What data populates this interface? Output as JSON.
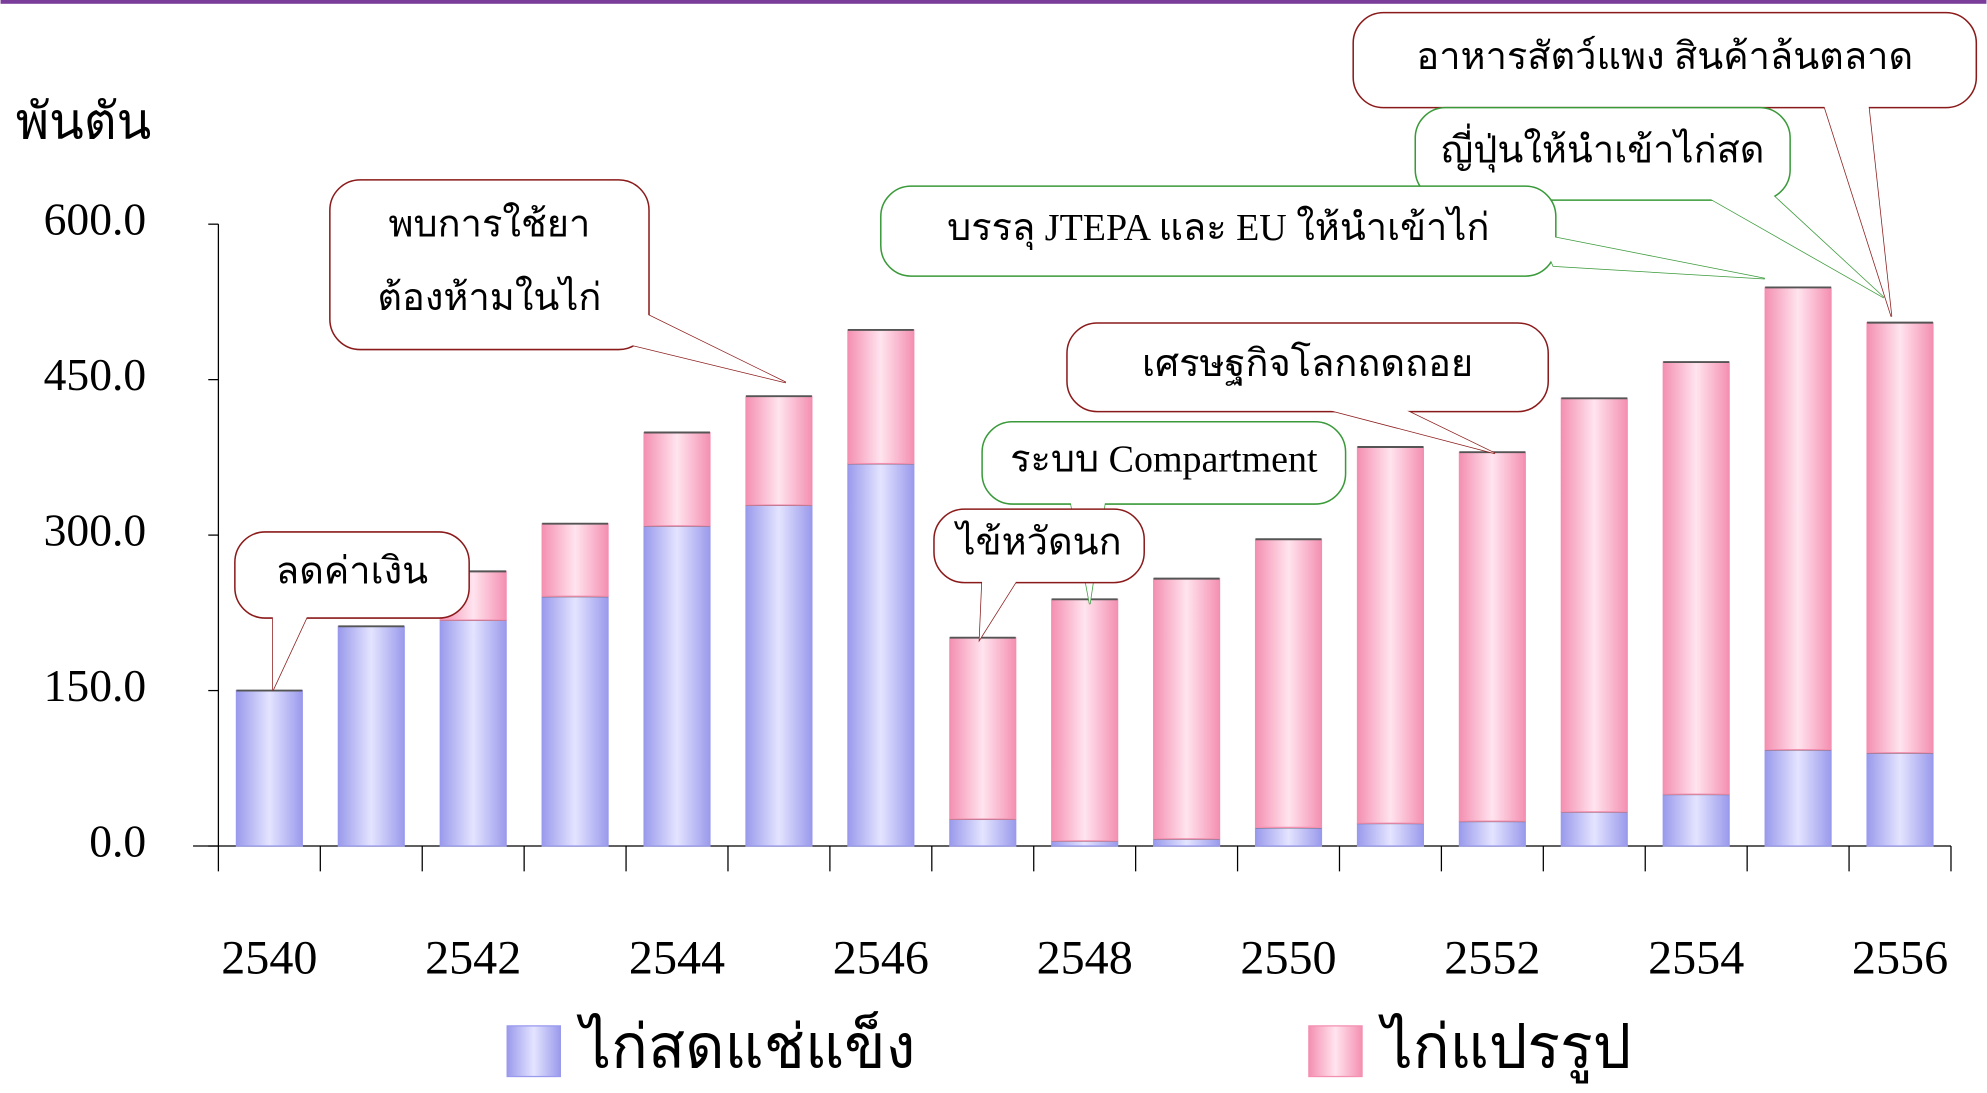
{
  "chart_data": {
    "type": "stacked-bar",
    "y_label": "พันตัน",
    "categories": [
      "2540",
      null,
      "2542",
      null,
      "2544",
      null,
      "2546",
      null,
      "2548",
      null,
      "2550",
      null,
      "2552",
      null,
      "2554",
      null,
      "2556"
    ],
    "series": [
      {
        "name": "ไก่สดแช่แข็ง",
        "color": "#9999ee",
        "values": [
          150,
          212,
          218,
          241,
          309,
          329,
          369,
          26,
          5,
          7,
          18,
          22,
          24,
          33,
          50,
          93,
          90
        ]
      },
      {
        "name": "ไก่แปรรูป",
        "color": "#f48fb0",
        "values": [
          0,
          0,
          47,
          70,
          90,
          105,
          129,
          175,
          233,
          251,
          278,
          363,
          356,
          399,
          417,
          446,
          415
        ]
      }
    ],
    "ylim": [
      0,
      600
    ],
    "yticks": [
      {
        "value": 0,
        "label": "0.0"
      },
      {
        "value": 150,
        "label": "150.0"
      },
      {
        "value": 300,
        "label": "300.0"
      },
      {
        "value": 450,
        "label": "450.0"
      },
      {
        "value": 600,
        "label": "600.0"
      }
    ],
    "annotations": [
      {
        "lines": [
          "อาหารสัตว์แพง สินค้าล้นตลาด"
        ]
      },
      {
        "lines": [
          "ญี่ปุ่นให้นำเข้าไก่สด"
        ]
      },
      {
        "lines": [
          "บรรลุ JTEPA และ EU ให้นำเข้าไก่"
        ]
      },
      {
        "lines": [
          "พบการใช้ยา",
          "ต้องห้ามในไก่"
        ]
      },
      {
        "lines": [
          "เศรษฐกิจโลกถดถอย"
        ]
      },
      {
        "lines": [
          "ระบบ Compartment"
        ]
      },
      {
        "lines": [
          "ไข้หวัดนก"
        ]
      },
      {
        "lines": [
          "ลดค่าเงิน"
        ]
      }
    ]
  }
}
